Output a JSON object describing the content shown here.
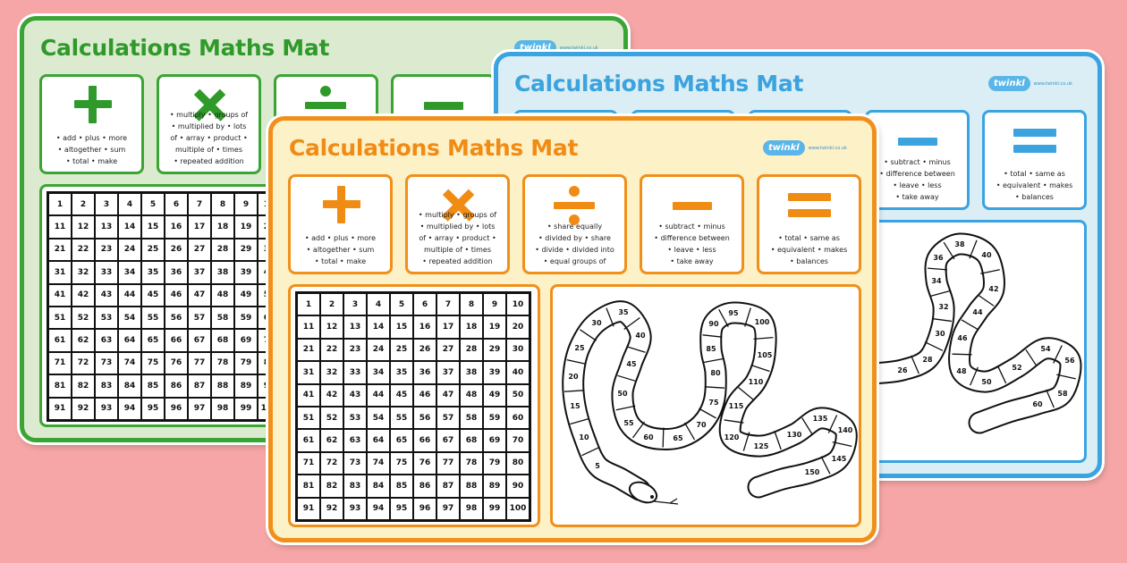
{
  "background_color": "#f6a6a6",
  "brand": {
    "logo_text": "twinkl",
    "url": "www.twinkl.co.uk"
  },
  "number_grid": [
    1,
    2,
    3,
    4,
    5,
    6,
    7,
    8,
    9,
    10,
    11,
    12,
    13,
    14,
    15,
    16,
    17,
    18,
    19,
    20,
    21,
    22,
    23,
    24,
    25,
    26,
    27,
    28,
    29,
    30,
    31,
    32,
    33,
    34,
    35,
    36,
    37,
    38,
    39,
    40,
    41,
    42,
    43,
    44,
    45,
    46,
    47,
    48,
    49,
    50,
    51,
    52,
    53,
    54,
    55,
    56,
    57,
    58,
    59,
    60,
    61,
    62,
    63,
    64,
    65,
    66,
    67,
    68,
    69,
    70,
    71,
    72,
    73,
    74,
    75,
    76,
    77,
    78,
    79,
    80,
    81,
    82,
    83,
    84,
    85,
    86,
    87,
    88,
    89,
    90,
    91,
    92,
    93,
    94,
    95,
    96,
    97,
    98,
    99,
    100
  ],
  "operations": [
    {
      "name": "addition",
      "icon": "plus-icon",
      "words": [
        "• add • plus • more",
        "• altogether • sum",
        "• total • make"
      ]
    },
    {
      "name": "multiplication",
      "icon": "times-icon",
      "words": [
        "• multiply • groups of",
        "• multiplied by • lots",
        "of • array • product •",
        "multiple of • times",
        "• repeated addition"
      ]
    },
    {
      "name": "division",
      "icon": "divide-icon",
      "words": [
        "• share equally",
        "• divided by • share",
        "• divide • divided into",
        "• equal groups of"
      ]
    },
    {
      "name": "subtraction",
      "icon": "minus-icon",
      "words": [
        "• subtract • minus",
        "• difference between",
        "• leave • less",
        "• take away"
      ]
    },
    {
      "name": "equals",
      "icon": "equals-icon",
      "words": [
        "• total • same as",
        "• equivalent • makes",
        "• balances"
      ]
    }
  ],
  "mats": [
    {
      "id": "green",
      "title": "Calculations Maths Mat",
      "colors": {
        "border": "#3aa535",
        "background": "#dcebd0",
        "accent": "#2f9a2a"
      },
      "show_grid": true,
      "snake_numbers": []
    },
    {
      "id": "blue",
      "title": "Calculations Maths Mat",
      "colors": {
        "border": "#3aa3e0",
        "background": "#dbeef5",
        "accent": "#3ba3de"
      },
      "show_grid": false,
      "snake_numbers": [
        26,
        28,
        30,
        32,
        34,
        36,
        38,
        40,
        42,
        44,
        46,
        48,
        50,
        52,
        54,
        56,
        58,
        60
      ]
    },
    {
      "id": "orange",
      "title": "Calculations Maths Mat",
      "colors": {
        "border": "#f0901a",
        "background": "#fdf1c8",
        "accent": "#f08c14"
      },
      "show_grid": true,
      "snake_numbers": [
        5,
        10,
        15,
        20,
        25,
        30,
        35,
        40,
        45,
        50,
        55,
        60,
        65,
        70,
        75,
        80,
        85,
        90,
        95,
        100,
        105,
        110,
        115,
        120,
        125,
        130,
        135,
        140,
        145,
        150
      ]
    }
  ]
}
